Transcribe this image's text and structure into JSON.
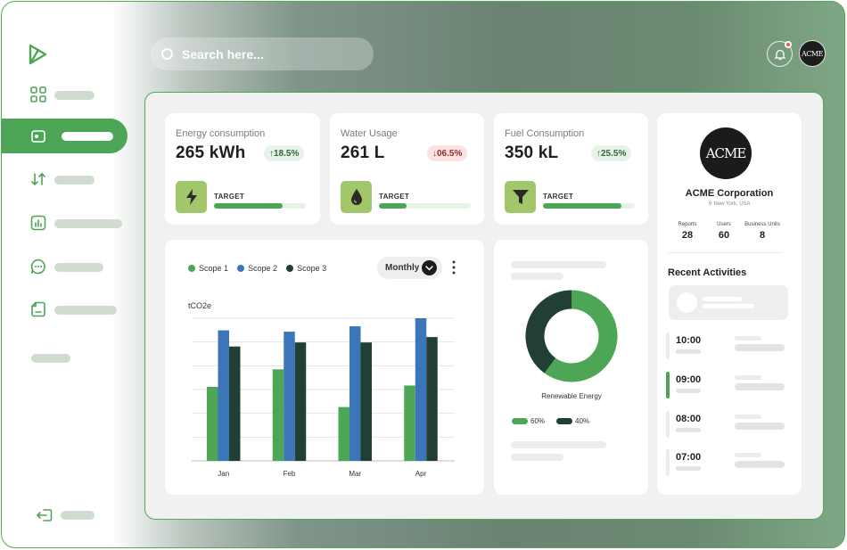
{
  "search": {
    "placeholder": "Search here..."
  },
  "header": {
    "avatar_text": "ACME",
    "notification": true
  },
  "sidebar": {
    "items": [
      {
        "icon": "grid-icon"
      },
      {
        "icon": "wallet-icon",
        "active": true
      },
      {
        "icon": "transfer-icon"
      },
      {
        "icon": "chart-icon"
      },
      {
        "icon": "chat-icon"
      },
      {
        "icon": "document-icon"
      }
    ],
    "logout_icon": "logout-icon"
  },
  "kpis": [
    {
      "title": "Energy consumption",
      "value": "265 kWh",
      "change": "18.5%",
      "direction": "up",
      "target_label": "TARGET",
      "progress": 0.75,
      "icon": "lightning-icon"
    },
    {
      "title": "Water Usage",
      "value": "261 L",
      "change": "06.5%",
      "direction": "down",
      "target_label": "TARGET",
      "progress": 0.3,
      "icon": "water-drop-icon"
    },
    {
      "title": "Fuel Consumption",
      "value": "350 kL",
      "change": "25.5%",
      "direction": "up",
      "target_label": "TARGET",
      "progress": 0.85,
      "icon": "funnel-icon"
    }
  ],
  "emissions": {
    "period": "Monthly",
    "chart_data": {
      "type": "bar",
      "categories": [
        "Jan",
        "Feb",
        "Mar",
        "Apr"
      ],
      "series": [
        {
          "name": "Scope 1",
          "color": "#4da556",
          "values": [
            55,
            68,
            40,
            56
          ]
        },
        {
          "name": "Scope 2",
          "color": "#3b76b8",
          "values": [
            97,
            96,
            100,
            106
          ]
        },
        {
          "name": "Scope 3",
          "color": "#213f35",
          "values": [
            85,
            88,
            88,
            92
          ]
        }
      ],
      "ylabel": "tCO2e",
      "ylim": [
        0,
        106
      ],
      "grid": true,
      "legend": "top-left"
    }
  },
  "renewable": {
    "label": "Renewable Energy",
    "chart_data": {
      "type": "pie",
      "slices": [
        {
          "label": "60%",
          "value": 60,
          "color": "#4da556"
        },
        {
          "label": "40%",
          "value": 40,
          "color": "#213f35"
        }
      ]
    }
  },
  "company": {
    "logo_text": "ACME",
    "name": "ACME Corporation",
    "location": "New York, USA",
    "stats": [
      {
        "label": "Reports",
        "value": "28"
      },
      {
        "label": "Users",
        "value": "60"
      },
      {
        "label": "Business Units",
        "value": "8"
      }
    ]
  },
  "activities": {
    "title": "Recent Activities",
    "items": [
      {
        "time": "10:00",
        "active": false
      },
      {
        "time": "09:00",
        "active": true
      },
      {
        "time": "08:00",
        "active": false
      },
      {
        "time": "07:00",
        "active": false
      }
    ]
  }
}
